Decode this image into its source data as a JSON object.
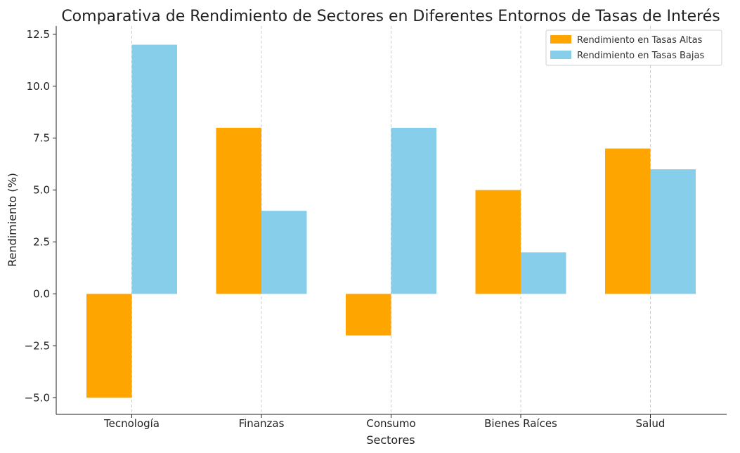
{
  "chart_data": {
    "type": "bar",
    "title": "Comparativa de Rendimiento de Sectores en Diferentes Entornos de Tasas de Interés",
    "xlabel": "Sectores",
    "ylabel": "Rendimiento (%)",
    "categories": [
      "Tecnología",
      "Finanzas",
      "Consumo",
      "Bienes Raíces",
      "Salud"
    ],
    "series": [
      {
        "name": "Rendimiento en Tasas Altas",
        "values": [
          -5,
          8,
          -2,
          5,
          7
        ],
        "color": "#FFA500"
      },
      {
        "name": "Rendimiento en Tasas Bajas",
        "values": [
          12,
          4,
          8,
          2,
          6
        ],
        "color": "#87CEEB"
      }
    ],
    "ylim": [
      -5.8,
      12.9
    ],
    "yticks": [
      -5.0,
      -2.5,
      0.0,
      2.5,
      5.0,
      7.5,
      10.0,
      12.5
    ],
    "ytick_labels": [
      "−5.0",
      "−2.5",
      "0.0",
      "2.5",
      "5.0",
      "7.5",
      "10.0",
      "12.5"
    ],
    "grid": "x-dashed",
    "legend_position": "top-right"
  }
}
